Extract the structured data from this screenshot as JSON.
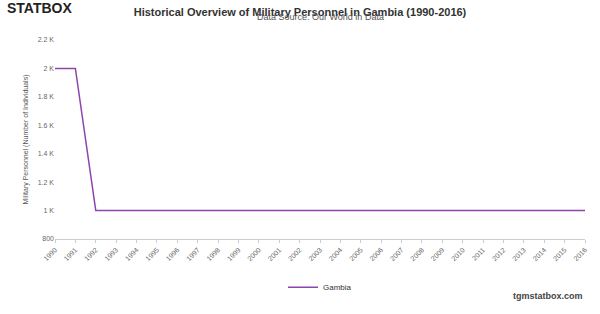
{
  "chart_data": {
    "type": "line",
    "title": "Historical Overview of Military Personnel in Gambia (1990-2016)",
    "subtitle": "Data Source: Our World in Data",
    "y_label": "Military Personnel (Number of Individuals)",
    "annotations": [
      "STATBOX",
      "tgmstatbox.com"
    ],
    "x": [
      1990,
      1991,
      1992,
      1993,
      1994,
      1995,
      1996,
      1997,
      1998,
      1999,
      2000,
      2001,
      2002,
      2003,
      2004,
      2005,
      2006,
      2007,
      2008,
      2009,
      2010,
      2011,
      2012,
      2013,
      2014,
      2015,
      2016
    ],
    "series": [
      {
        "name": "Gambia",
        "color": "#8e44ad",
        "values": [
          2000,
          2000,
          1000,
          1000,
          1000,
          1000,
          1000,
          1000,
          1000,
          1000,
          1000,
          1000,
          1000,
          1000,
          1000,
          1000,
          1000,
          1000,
          1000,
          1000,
          1000,
          1000,
          1000,
          1000,
          1000,
          1000,
          1000
        ]
      }
    ],
    "xlim": [
      1990,
      2016
    ],
    "xticks": [
      1990,
      1991,
      1992,
      1993,
      1994,
      1995,
      1996,
      1997,
      1998,
      1999,
      2000,
      2001,
      2002,
      2003,
      2004,
      2005,
      2006,
      2007,
      2008,
      2009,
      2010,
      2011,
      2012,
      2013,
      2014,
      2015,
      2016
    ],
    "ylim": [
      800,
      2200
    ],
    "yticks": [
      800,
      {
        "value": 1000,
        "label": "1 K"
      },
      {
        "value": 1200,
        "label": "1.2 K"
      },
      {
        "value": 1400,
        "label": "1.4 K"
      },
      {
        "value": 1600,
        "label": "1.6 K"
      },
      {
        "value": 1800,
        "label": "1.8 K"
      },
      {
        "value": 2000,
        "label": "2 K"
      },
      {
        "value": 2200,
        "label": "2.2 K"
      }
    ],
    "grid": false,
    "legend": "bottom"
  }
}
